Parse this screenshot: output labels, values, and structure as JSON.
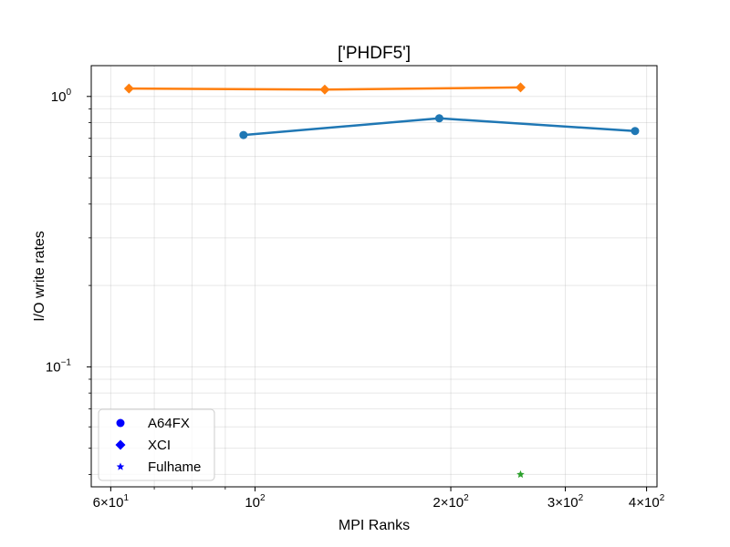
{
  "chart_data": {
    "type": "line",
    "title": "['PHDF5']",
    "xlabel": "MPI Ranks",
    "ylabel": "I/O write rates",
    "xscale": "log",
    "yscale": "log",
    "xlim": [
      56,
      415
    ],
    "ylim": [
      0.036,
      1.3
    ],
    "grid": true,
    "legend_position": "lower-left",
    "x_tick_labels": [
      "6×10",
      "10",
      "2×10",
      "3×10",
      "4×10"
    ],
    "y_tick_labels": [
      "10",
      "10"
    ],
    "series": [
      {
        "name": "A64FX",
        "marker": "circle",
        "color": "#1f77b4",
        "legend_color": "#0000ff",
        "x": [
          96,
          192,
          384
        ],
        "y": [
          0.72,
          0.83,
          0.745
        ]
      },
      {
        "name": "XCI",
        "marker": "diamond",
        "color": "#ff7f0e",
        "legend_color": "#0000ff",
        "x": [
          64,
          128,
          256
        ],
        "y": [
          1.07,
          1.06,
          1.08
        ]
      },
      {
        "name": "Fulhame",
        "marker": "star",
        "color": "#2ca02c",
        "legend_color": "#0000ff",
        "x": [
          256
        ],
        "y": [
          0.04
        ]
      }
    ]
  }
}
